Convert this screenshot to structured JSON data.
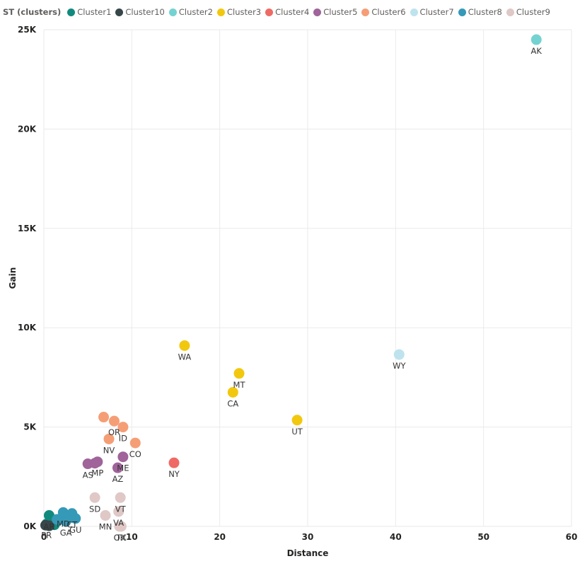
{
  "chart_data": {
    "type": "scatter",
    "legend_title": "ST (clusters)",
    "legend_position": "top-left",
    "grid": true,
    "xlabel": "Distance",
    "ylabel": "Gain",
    "xlim": [
      0,
      60
    ],
    "ylim": [
      0,
      25000
    ],
    "x_ticks": [
      "0",
      "10",
      "20",
      "30",
      "40",
      "50",
      "60"
    ],
    "y_ticks": [
      "0K",
      "5K",
      "10K",
      "15K",
      "20K",
      "25K"
    ],
    "series": [
      {
        "name": "Cluster1",
        "color": "#118a7e",
        "points": [
          {
            "label": "AR",
            "x": 0.6,
            "y": 550
          },
          {
            "label": "PR",
            "x": 0.3,
            "y": 120
          },
          {
            "label": "",
            "x": 0.9,
            "y": 300
          },
          {
            "label": "",
            "x": 1.3,
            "y": 200
          },
          {
            "label": "",
            "x": 1.8,
            "y": 350
          },
          {
            "label": "",
            "x": 0.5,
            "y": 50
          },
          {
            "label": "",
            "x": 1.2,
            "y": 80
          }
        ]
      },
      {
        "name": "Cluster10",
        "color": "#374649",
        "points": [
          {
            "label": "",
            "x": 0.2,
            "y": 60
          },
          {
            "label": "",
            "x": 0.6,
            "y": 30
          }
        ]
      },
      {
        "name": "Cluster2",
        "color": "#74d3d1",
        "points": [
          {
            "label": "AK",
            "x": 56,
            "y": 24500
          }
        ]
      },
      {
        "name": "Cluster3",
        "color": "#f2c80f",
        "points": [
          {
            "label": "WA",
            "x": 16,
            "y": 9100
          },
          {
            "label": "MT",
            "x": 22.2,
            "y": 7700
          },
          {
            "label": "CA",
            "x": 21.5,
            "y": 6750
          },
          {
            "label": "UT",
            "x": 28.8,
            "y": 5350
          }
        ]
      },
      {
        "name": "Cluster4",
        "color": "#ef6a64",
        "points": [
          {
            "label": "NY",
            "x": 14.8,
            "y": 3200
          }
        ]
      },
      {
        "name": "Cluster5",
        "color": "#a0639a",
        "points": [
          {
            "label": "ME",
            "x": 9,
            "y": 3500
          },
          {
            "label": "MP",
            "x": 6.1,
            "y": 3250
          },
          {
            "label": "AS",
            "x": 5,
            "y": 3150
          },
          {
            "label": "AZ",
            "x": 8.4,
            "y": 2950
          },
          {
            "label": "",
            "x": 5.8,
            "y": 3180
          }
        ]
      },
      {
        "name": "Cluster6",
        "color": "#f59e76",
        "points": [
          {
            "label": "OR",
            "x": 8,
            "y": 5300
          },
          {
            "label": "",
            "x": 6.8,
            "y": 5500
          },
          {
            "label": "ID",
            "x": 9,
            "y": 5000
          },
          {
            "label": "CO",
            "x": 10.4,
            "y": 4200
          },
          {
            "label": "NV",
            "x": 7.4,
            "y": 4400
          }
        ]
      },
      {
        "name": "Cluster7",
        "color": "#bee3ef",
        "points": [
          {
            "label": "WY",
            "x": 40.4,
            "y": 8650
          }
        ]
      },
      {
        "name": "Cluster8",
        "color": "#3599b8",
        "points": [
          {
            "label": "MD",
            "x": 2.2,
            "y": 700
          },
          {
            "label": "CT",
            "x": 3.2,
            "y": 650
          },
          {
            "label": "GA",
            "x": 2.5,
            "y": 250
          },
          {
            "label": "GU",
            "x": 3.6,
            "y": 400
          },
          {
            "label": "",
            "x": 1.5,
            "y": 350
          },
          {
            "label": "",
            "x": 2.9,
            "y": 550
          }
        ]
      },
      {
        "name": "Cluster9",
        "color": "#dfc8c6",
        "points": [
          {
            "label": "SD",
            "x": 5.8,
            "y": 1450
          },
          {
            "label": "VT",
            "x": 8.7,
            "y": 1450
          },
          {
            "label": "MN",
            "x": 7,
            "y": 550
          },
          {
            "label": "VA",
            "x": 8.5,
            "y": 750
          },
          {
            "label": "TX",
            "x": 8.8,
            "y": 0
          },
          {
            "label": "OK",
            "x": 8.6,
            "y": 0
          }
        ]
      }
    ]
  }
}
